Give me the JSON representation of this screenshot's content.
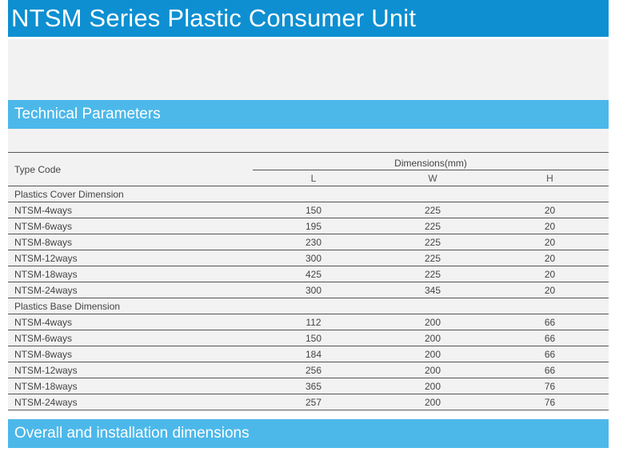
{
  "title": "NTSM Series Plastic Consumer Unit",
  "sections": {
    "technical_parameters": "Technical Parameters",
    "overall_dimensions": "Overall and installation dimensions"
  },
  "table": {
    "type_code_header": "Type Code",
    "dimensions_header": "Dimensions(mm)",
    "col_l": "L",
    "col_w": "W",
    "col_h": "H",
    "groups": [
      {
        "label": "Plastics Cover Dimension",
        "rows": [
          {
            "name": "NTSM-4ways",
            "l": "150",
            "w": "225",
            "h": "20"
          },
          {
            "name": "NTSM-6ways",
            "l": "195",
            "w": "225",
            "h": "20"
          },
          {
            "name": "NTSM-8ways",
            "l": "230",
            "w": "225",
            "h": "20"
          },
          {
            "name": "NTSM-12ways",
            "l": "300",
            "w": "225",
            "h": "20"
          },
          {
            "name": "NTSM-18ways",
            "l": "425",
            "w": "225",
            "h": "20"
          },
          {
            "name": "NTSM-24ways",
            "l": "300",
            "w": "345",
            "h": "20"
          }
        ]
      },
      {
        "label": "Plastics Base Dimension",
        "rows": [
          {
            "name": "NTSM-4ways",
            "l": "112",
            "w": "200",
            "h": "66"
          },
          {
            "name": "NTSM-6ways",
            "l": "150",
            "w": "200",
            "h": "66"
          },
          {
            "name": "NTSM-8ways",
            "l": "184",
            "w": "200",
            "h": "66"
          },
          {
            "name": "NTSM-12ways",
            "l": "256",
            "w": "200",
            "h": "66"
          },
          {
            "name": "NTSM-18ways",
            "l": "365",
            "w": "200",
            "h": "76"
          },
          {
            "name": "NTSM-24ways",
            "l": "257",
            "w": "200",
            "h": "76"
          }
        ]
      }
    ]
  }
}
